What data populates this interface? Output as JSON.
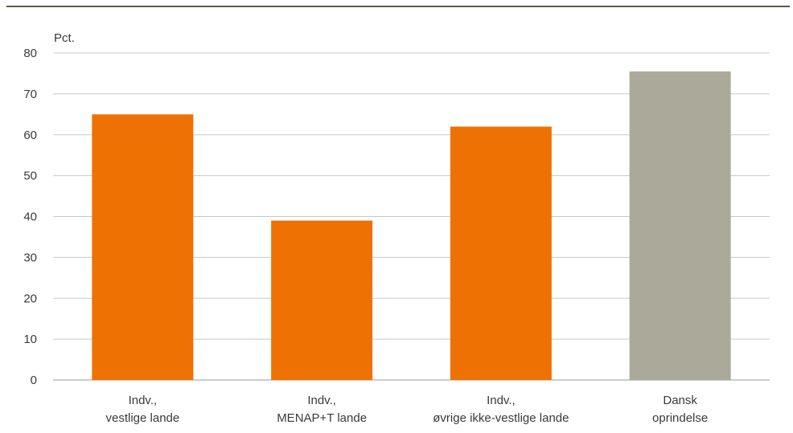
{
  "chart_data": {
    "type": "bar",
    "ylabel": "Pct.",
    "ylim": [
      0,
      80
    ],
    "yticks": [
      0,
      10,
      20,
      30,
      40,
      50,
      60,
      70,
      80
    ],
    "categories": [
      [
        "Indv.,",
        "vestlige lande"
      ],
      [
        "Indv.,",
        "MENAP+T lande"
      ],
      [
        "Indv.,",
        "øvrige ikke-vestlige lande"
      ],
      [
        "Dansk",
        "oprindelse"
      ]
    ],
    "values": [
      65,
      39,
      62,
      75.5
    ],
    "colors": [
      "#ee7203",
      "#ee7203",
      "#ee7203",
      "#aba99a"
    ],
    "grid": true
  },
  "colors": {
    "top_rule": "#5b5a48",
    "grid": "#c8c8c8",
    "axis": "#9a9a9a"
  }
}
